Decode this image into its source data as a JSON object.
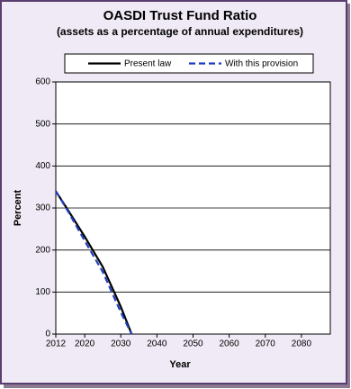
{
  "chart_data": {
    "type": "line",
    "title": "OASDI Trust Fund Ratio",
    "subtitle": "(assets as a percentage of annual expenditures)",
    "x_label": "Year",
    "y_label": "Percent",
    "x": [
      2012,
      2015,
      2020,
      2025,
      2030,
      2033
    ],
    "series": [
      {
        "name": "Present law",
        "color": "#000000",
        "dash": false,
        "values": [
          340,
          300,
          232,
          160,
          65,
          0
        ]
      },
      {
        "name": "With this provision",
        "color": "#1f3fbf",
        "dash": true,
        "values": [
          340,
          298,
          222,
          148,
          52,
          0
        ]
      }
    ],
    "xlim": [
      2012,
      2088
    ],
    "xticks": [
      2012,
      2020,
      2030,
      2040,
      2050,
      2060,
      2070,
      2080
    ],
    "ylim": [
      0,
      600
    ],
    "yticks": [
      0,
      100,
      200,
      300,
      400,
      500,
      600
    ],
    "grid": true
  }
}
